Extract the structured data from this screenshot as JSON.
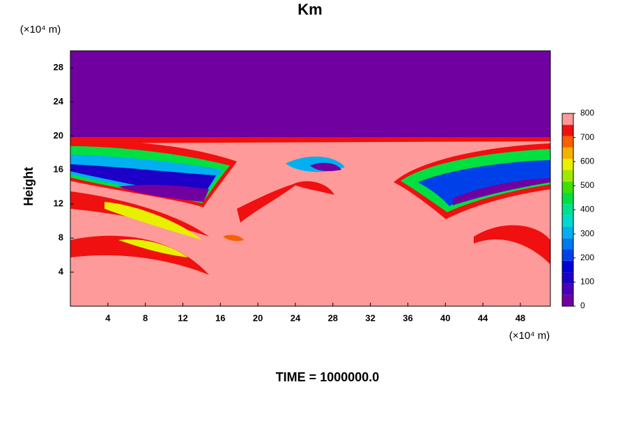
{
  "chart_data": {
    "type": "contour",
    "title": "Km",
    "y_unit_label": "(×10⁴ m)",
    "x_unit_label": "(×10⁴ m)",
    "ylabel": "Height",
    "footer": "TIME = 1000000.0",
    "xlim": [
      0,
      51.2
    ],
    "xticks": [
      4,
      8,
      12,
      16,
      20,
      24,
      28,
      32,
      36,
      40,
      44,
      48
    ],
    "ylim": [
      0,
      30
    ],
    "yticks": [
      4,
      8,
      12,
      16,
      20,
      24,
      28
    ],
    "colorbar": {
      "levels": [
        0,
        50,
        100,
        150,
        200,
        250,
        300,
        350,
        400,
        450,
        500,
        550,
        600,
        650,
        700,
        750,
        800
      ],
      "ticks": [
        0,
        100,
        200,
        300,
        400,
        500,
        600,
        700,
        800
      ],
      "colors": [
        "#7000a0",
        "#4800b8",
        "#1c00c8",
        "#0000d8",
        "#0040e8",
        "#0078f0",
        "#00b0f0",
        "#00d8d0",
        "#00e090",
        "#00e040",
        "#40e000",
        "#a0e800",
        "#e8f000",
        "#f8b000",
        "#f86000",
        "#f01010",
        "#ff9a9a"
      ]
    }
  }
}
